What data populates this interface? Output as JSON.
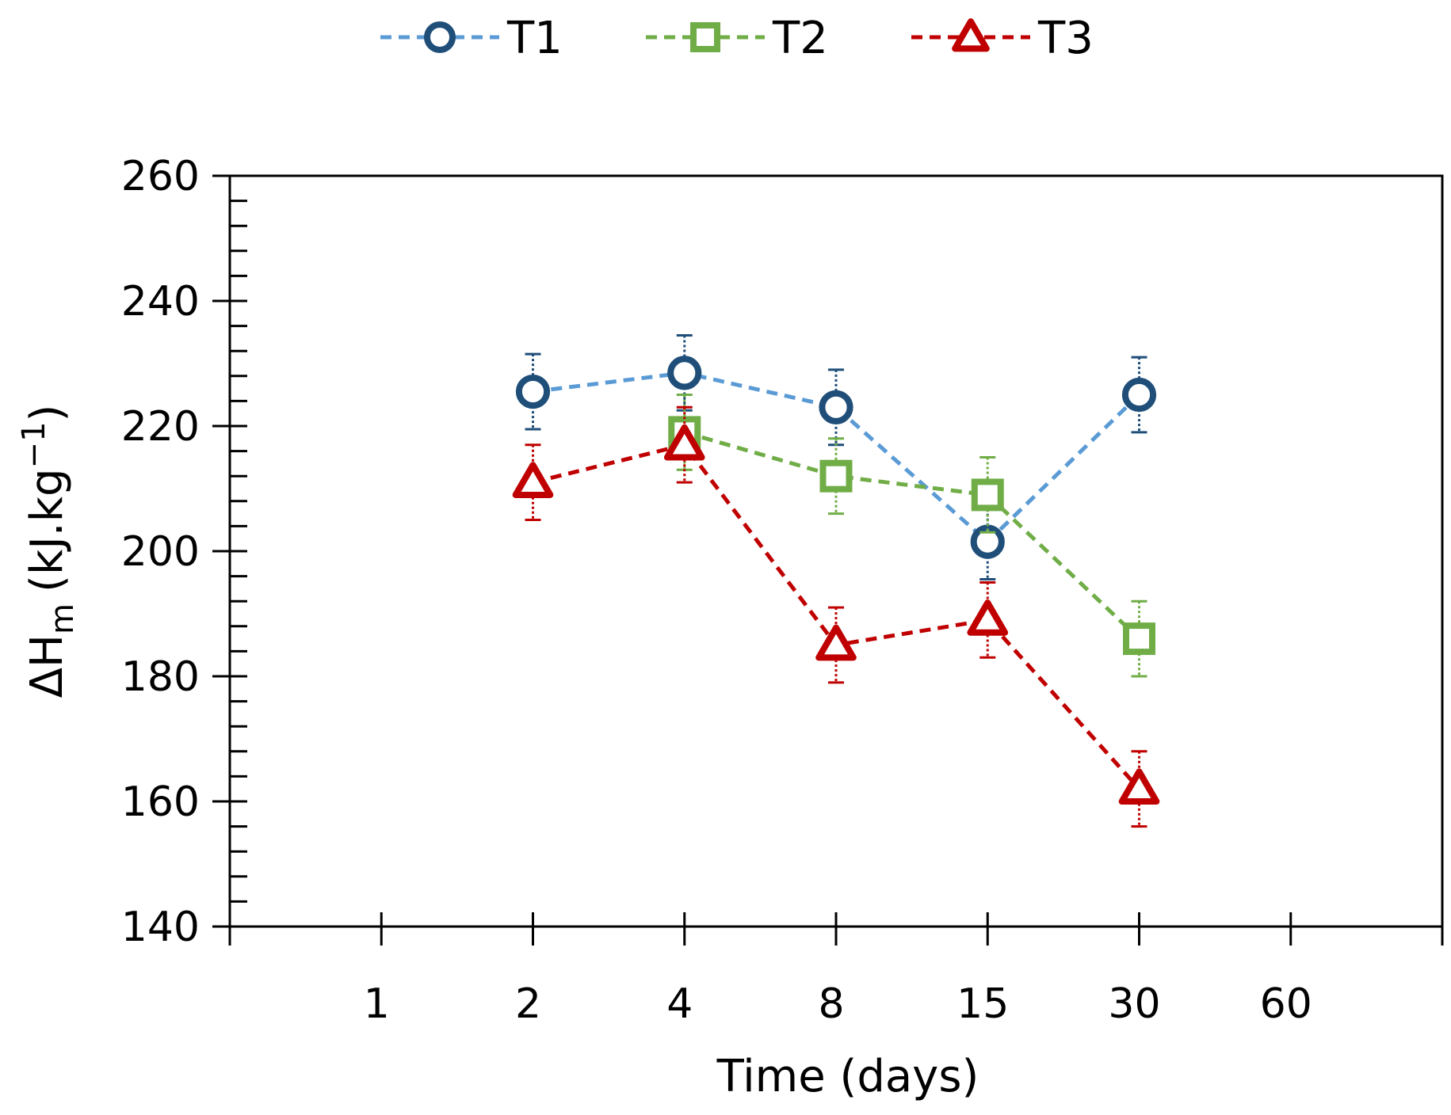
{
  "chart_data": {
    "type": "line",
    "title": "",
    "xlabel": "Time (days)",
    "ylabel": {
      "main": "ΔH",
      "subscript": "m",
      "units": "(kJ.kg",
      "superscript": "−1",
      "close": ")"
    },
    "x_tick_labels": [
      "1",
      "2",
      "4",
      "8",
      "15",
      "30",
      "60"
    ],
    "y_ticks": [
      140,
      160,
      180,
      200,
      220,
      240,
      260
    ],
    "y_tick_labels": [
      "140",
      "160",
      "180",
      "200",
      "220",
      "240",
      "260"
    ],
    "ylim": [
      140,
      260
    ],
    "x_category_count": 8,
    "categories": [
      "2",
      "4",
      "8",
      "15",
      "30"
    ],
    "legend_position": "top-center",
    "grid": false,
    "series": [
      {
        "name": "T1",
        "marker": "circle",
        "line_color": "#5B9BD5",
        "marker_color": "#1F4E79",
        "points": [
          {
            "x": "2",
            "y": 225.5,
            "err": 6
          },
          {
            "x": "4",
            "y": 228.5,
            "err": 6
          },
          {
            "x": "8",
            "y": 223,
            "err": 6
          },
          {
            "x": "15",
            "y": 201.5,
            "err": 6
          },
          {
            "x": "30",
            "y": 225,
            "err": 6
          }
        ]
      },
      {
        "name": "T2",
        "marker": "square",
        "line_color": "#70AD47",
        "marker_color": "#70AD47",
        "points": [
          {
            "x": "4",
            "y": 219,
            "err": 6
          },
          {
            "x": "8",
            "y": 212,
            "err": 6
          },
          {
            "x": "15",
            "y": 209,
            "err": 6
          },
          {
            "x": "30",
            "y": 186,
            "err": 6
          }
        ]
      },
      {
        "name": "T3",
        "marker": "triangle",
        "line_color": "#C00000",
        "marker_color": "#C00000",
        "points": [
          {
            "x": "2",
            "y": 211,
            "err": 6
          },
          {
            "x": "4",
            "y": 217,
            "err": 6
          },
          {
            "x": "8",
            "y": 185,
            "err": 6
          },
          {
            "x": "15",
            "y": 189,
            "err": 6
          },
          {
            "x": "30",
            "y": 162,
            "err": 6
          }
        ]
      }
    ]
  }
}
